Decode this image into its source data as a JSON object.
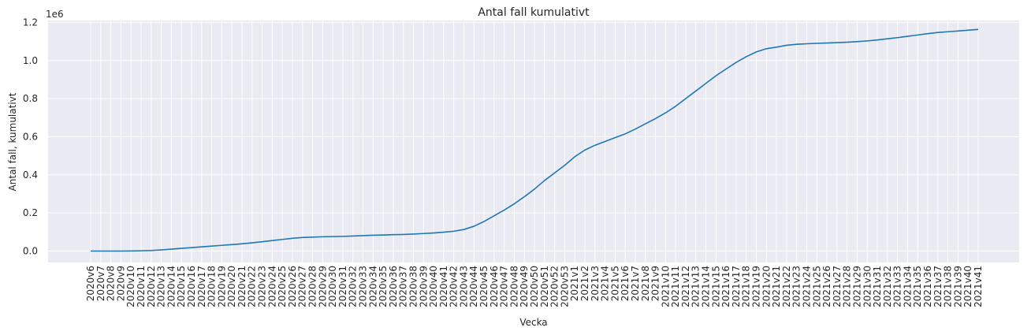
{
  "chart_data": {
    "type": "line",
    "title": "Antal fall kumulativt",
    "xlabel": "Vecka",
    "ylabel": "Antal fall, kumulativt",
    "y_offset_label": "1e6",
    "ylim": [
      -0.06,
      1.21
    ],
    "yticks": [
      0.0,
      0.2,
      0.4,
      0.6,
      0.8,
      1.0,
      1.2
    ],
    "ytick_labels": [
      "0.0",
      "0.2",
      "0.4",
      "0.6",
      "0.8",
      "1.0",
      "1.2"
    ],
    "grid": true,
    "color": "#1f77b4",
    "categories": [
      "2020v6",
      "2020v7",
      "2020v8",
      "2020v9",
      "2020v10",
      "2020v11",
      "2020v12",
      "2020v13",
      "2020v14",
      "2020v15",
      "2020v16",
      "2020v17",
      "2020v18",
      "2020v19",
      "2020v20",
      "2020v21",
      "2020v22",
      "2020v23",
      "2020v24",
      "2020v25",
      "2020v26",
      "2020v27",
      "2020v28",
      "2020v29",
      "2020v30",
      "2020v31",
      "2020v32",
      "2020v33",
      "2020v34",
      "2020v35",
      "2020v36",
      "2020v37",
      "2020v38",
      "2020v39",
      "2020v40",
      "2020v41",
      "2020v42",
      "2020v43",
      "2020v44",
      "2020v45",
      "2020v46",
      "2020v47",
      "2020v48",
      "2020v49",
      "2020v50",
      "2020v51",
      "2020v52",
      "2020v53",
      "2021v1",
      "2021v2",
      "2021v3",
      "2021v4",
      "2021v5",
      "2021v6",
      "2021v7",
      "2021v8",
      "2021v9",
      "2021v10",
      "2021v11",
      "2021v12",
      "2021v13",
      "2021v14",
      "2021v15",
      "2021v16",
      "2021v17",
      "2021v18",
      "2021v19",
      "2021v20",
      "2021v21",
      "2021v22",
      "2021v23",
      "2021v24",
      "2021v25",
      "2021v26",
      "2021v27",
      "2021v28",
      "2021v29",
      "2021v30",
      "2021v31",
      "2021v32",
      "2021v33",
      "2021v34",
      "2021v35",
      "2021v36",
      "2021v37",
      "2021v38",
      "2021v39",
      "2021v40",
      "2021v41"
    ],
    "series": [
      {
        "values": [
          0.0,
          0.0,
          0.0,
          0.0,
          0.0005,
          0.0015,
          0.003,
          0.006,
          0.01,
          0.014,
          0.018,
          0.022,
          0.026,
          0.03,
          0.034,
          0.038,
          0.043,
          0.049,
          0.055,
          0.061,
          0.067,
          0.071,
          0.073,
          0.075,
          0.076,
          0.077,
          0.079,
          0.081,
          0.083,
          0.084,
          0.086,
          0.087,
          0.089,
          0.092,
          0.095,
          0.099,
          0.104,
          0.113,
          0.13,
          0.155,
          0.185,
          0.215,
          0.248,
          0.285,
          0.325,
          0.37,
          0.41,
          0.45,
          0.495,
          0.53,
          0.555,
          0.575,
          0.595,
          0.615,
          0.64,
          0.668,
          0.695,
          0.725,
          0.76,
          0.8,
          0.84,
          0.88,
          0.92,
          0.955,
          0.99,
          1.02,
          1.045,
          1.062,
          1.07,
          1.08,
          1.085,
          1.088,
          1.09,
          1.092,
          1.094,
          1.096,
          1.099,
          1.103,
          1.108,
          1.114,
          1.12,
          1.127,
          1.134,
          1.141,
          1.147,
          1.151,
          1.155,
          1.159,
          1.163
        ]
      }
    ]
  }
}
